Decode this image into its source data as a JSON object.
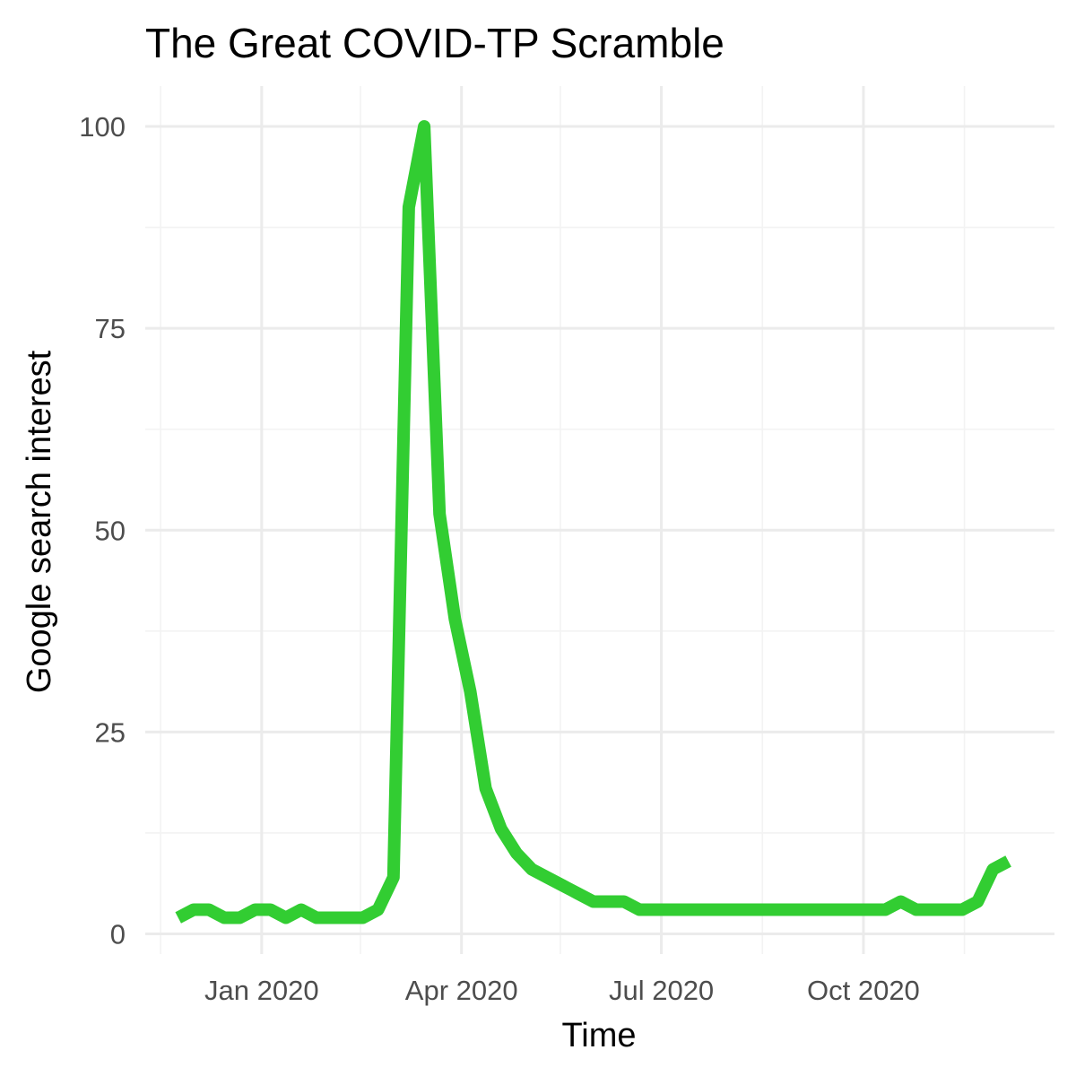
{
  "chart_data": {
    "type": "line",
    "title": "The Great COVID-TP Scramble",
    "xlabel": "Time",
    "ylabel": "Google search interest",
    "x_type": "date",
    "xlim": [
      "2019-11-09",
      "2020-12-27"
    ],
    "ylim": [
      -2.5,
      105
    ],
    "x_ticks": [
      {
        "date": "2020-01-01",
        "label": "Jan 2020"
      },
      {
        "date": "2020-04-01",
        "label": "Apr 2020"
      },
      {
        "date": "2020-07-01",
        "label": "Jul 2020"
      },
      {
        "date": "2020-10-01",
        "label": "Oct 2020"
      }
    ],
    "x_minor_ticks": [
      "2019-11-16",
      "2020-02-15",
      "2020-05-16",
      "2020-08-16",
      "2020-11-16"
    ],
    "y_ticks": [
      0,
      25,
      50,
      75,
      100
    ],
    "y_minor_ticks": [
      12.5,
      37.5,
      62.5,
      87.5
    ],
    "grid": true,
    "legend": "none",
    "color": "#32CD32",
    "x": [
      "2019-11-24",
      "2019-12-01",
      "2019-12-08",
      "2019-12-15",
      "2019-12-22",
      "2019-12-29",
      "2020-01-05",
      "2020-01-12",
      "2020-01-19",
      "2020-01-26",
      "2020-02-02",
      "2020-02-09",
      "2020-02-16",
      "2020-02-23",
      "2020-03-01",
      "2020-03-08",
      "2020-03-15",
      "2020-03-22",
      "2020-03-29",
      "2020-04-05",
      "2020-04-12",
      "2020-04-19",
      "2020-04-26",
      "2020-05-03",
      "2020-05-10",
      "2020-05-17",
      "2020-05-24",
      "2020-05-31",
      "2020-06-07",
      "2020-06-14",
      "2020-06-21",
      "2020-06-28",
      "2020-07-05",
      "2020-07-12",
      "2020-07-19",
      "2020-07-26",
      "2020-08-02",
      "2020-08-09",
      "2020-08-16",
      "2020-08-23",
      "2020-08-30",
      "2020-09-06",
      "2020-09-13",
      "2020-09-20",
      "2020-09-27",
      "2020-10-04",
      "2020-10-11",
      "2020-10-18",
      "2020-10-25",
      "2020-11-01",
      "2020-11-08",
      "2020-11-15",
      "2020-11-22",
      "2020-11-29",
      "2020-12-06"
    ],
    "y": [
      2,
      3,
      3,
      2,
      2,
      3,
      3,
      2,
      3,
      2,
      2,
      2,
      2,
      3,
      7,
      90,
      100,
      52,
      39,
      30,
      18,
      13,
      10,
      8,
      7,
      6,
      5,
      4,
      4,
      4,
      3,
      3,
      3,
      3,
      3,
      3,
      3,
      3,
      3,
      3,
      3,
      3,
      3,
      3,
      3,
      3,
      3,
      4,
      3,
      3,
      3,
      3,
      4,
      8,
      9
    ]
  }
}
